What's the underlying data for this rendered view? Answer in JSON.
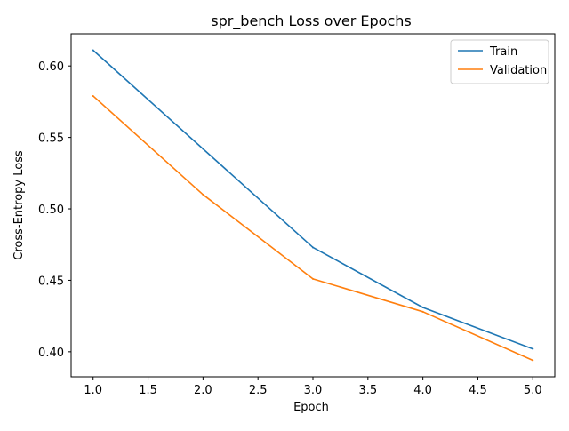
{
  "chart_data": {
    "type": "line",
    "title": "spr_bench Loss over Epochs",
    "xlabel": "Epoch",
    "ylabel": "Cross-Entropy Loss",
    "xlim": [
      0.8,
      5.2
    ],
    "ylim": [
      0.3825,
      0.6225
    ],
    "x_ticks": [
      1.0,
      1.5,
      2.0,
      2.5,
      3.0,
      3.5,
      4.0,
      4.5,
      5.0
    ],
    "x_tick_labels": [
      "1.0",
      "1.5",
      "2.0",
      "2.5",
      "3.0",
      "3.5",
      "4.0",
      "4.5",
      "5.0"
    ],
    "y_ticks": [
      0.4,
      0.45,
      0.5,
      0.55,
      0.6
    ],
    "y_tick_labels": [
      "0.40",
      "0.45",
      "0.50",
      "0.55",
      "0.60"
    ],
    "grid": false,
    "legend_position": "top-right",
    "x": [
      1,
      2,
      3,
      4,
      5
    ],
    "series": [
      {
        "name": "Train",
        "color": "#1f77b4",
        "values": [
          0.611,
          0.542,
          0.473,
          0.431,
          0.402
        ]
      },
      {
        "name": "Validation",
        "color": "#ff7f0e",
        "values": [
          0.579,
          0.51,
          0.451,
          0.428,
          0.394
        ]
      }
    ]
  }
}
